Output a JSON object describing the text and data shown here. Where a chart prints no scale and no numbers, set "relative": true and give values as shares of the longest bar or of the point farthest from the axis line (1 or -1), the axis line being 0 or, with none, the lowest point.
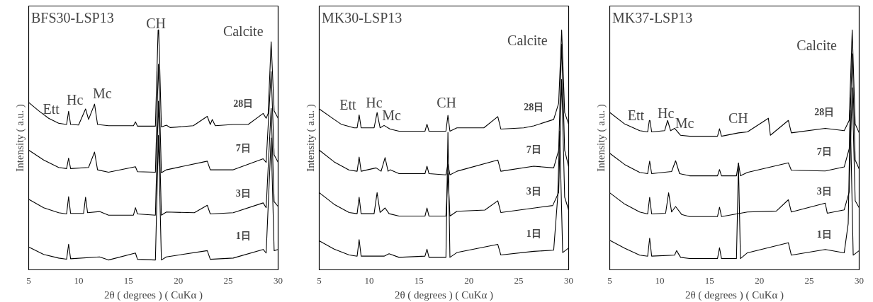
{
  "chart_data": [
    {
      "type": "line",
      "relative": true,
      "title": "BFS30-LSP13",
      "xlabel": "2θ ( degrees ) ( CuKα )",
      "ylabel": "Intensity ( a.u. )",
      "xlim": [
        5,
        30
      ],
      "xticks": [
        5,
        10,
        15,
        20,
        25,
        30
      ],
      "grid": false,
      "legend": false,
      "tick_labels": "x",
      "marker": "none",
      "line_style": "solid",
      "annotations": [
        "Ett",
        "Hc",
        "Mc",
        "CH",
        "Calcite"
      ],
      "series": [
        {
          "name": "28日",
          "color": "#000000",
          "x": [
            5,
            6,
            7,
            8,
            8.8,
            9.0,
            9.2,
            10,
            10.7,
            11.0,
            11.6,
            11.9,
            13,
            15.5,
            15.7,
            15.9,
            17.7,
            17.97,
            18.03,
            18.3,
            18.8,
            19.2,
            21.5,
            22.9,
            23.2,
            23.4,
            23.7,
            25.5,
            27,
            28.5,
            28.8,
            29.0,
            29.3,
            29.6,
            30
          ],
          "values": [
            0.698,
            0.663,
            0.632,
            0.611,
            0.606,
            0.661,
            0.606,
            0.604,
            0.671,
            0.627,
            0.691,
            0.606,
            0.601,
            0.601,
            0.617,
            0.599,
            0.599,
            1.0,
            1.0,
            0.596,
            0.603,
            0.593,
            0.601,
            0.64,
            0.606,
            0.627,
            0.601,
            0.606,
            0.606,
            0.652,
            0.632,
            0.652,
            0.951,
            0.663,
            0.632
          ]
        },
        {
          "name": "7日",
          "color": "#000000",
          "x": [
            5,
            6.5,
            8,
            8.8,
            9.0,
            9.2,
            11.0,
            11.6,
            11.9,
            13,
            15.7,
            15.9,
            17.7,
            18.0,
            18.3,
            18.8,
            22.9,
            23.2,
            25.5,
            28.5,
            28.8,
            29.3,
            29.6,
            30
          ],
          "values": [
            0.499,
            0.458,
            0.427,
            0.422,
            0.466,
            0.422,
            0.427,
            0.491,
            0.417,
            0.407,
            0.43,
            0.409,
            0.407,
            0.857,
            0.405,
            0.417,
            0.453,
            0.417,
            0.417,
            0.463,
            0.448,
            0.826,
            0.479,
            0.448
          ]
        },
        {
          "name": "3日",
          "color": "#000000",
          "x": [
            5,
            6.5,
            8,
            8.8,
            9.0,
            9.2,
            10.5,
            10.7,
            10.9,
            12.1,
            13,
            15.5,
            15.7,
            15.9,
            17.7,
            18.0,
            18.3,
            18.8,
            21.6,
            22.9,
            23.2,
            25.5,
            28.5,
            28.8,
            29.3,
            29.6,
            30
          ],
          "values": [
            0.294,
            0.259,
            0.238,
            0.233,
            0.305,
            0.235,
            0.235,
            0.303,
            0.238,
            0.243,
            0.228,
            0.228,
            0.259,
            0.233,
            0.228,
            0.703,
            0.228,
            0.241,
            0.238,
            0.269,
            0.233,
            0.238,
            0.279,
            0.259,
            0.673,
            0.284,
            0.264
          ]
        },
        {
          "name": "1日",
          "color": "#000000",
          "x": [
            5,
            6.5,
            8,
            8.8,
            9.0,
            9.2,
            12.1,
            13,
            15.7,
            15.9,
            17.7,
            18.0,
            18.3,
            18.8,
            22.9,
            23.2,
            25.5,
            28.5,
            28.8,
            29.3,
            29.6,
            30
          ],
          "values": [
            0.095,
            0.064,
            0.049,
            0.044,
            0.107,
            0.046,
            0.054,
            0.041,
            0.07,
            0.044,
            0.041,
            0.56,
            0.041,
            0.054,
            0.08,
            0.044,
            0.049,
            0.085,
            0.07,
            0.55,
            0.08,
            0.085
          ]
        }
      ]
    },
    {
      "type": "line",
      "relative": true,
      "title": "MK30-LSP13",
      "xlabel": "2θ ( degrees ) ( CuKα )",
      "ylabel": "Intensity ( a.u. )",
      "xlim": [
        5,
        30
      ],
      "xticks": [
        5,
        10,
        15,
        20,
        25,
        30
      ],
      "grid": false,
      "legend": false,
      "tick_labels": "x",
      "marker": "none",
      "line_style": "solid",
      "annotations": [
        "Ett",
        "Hc",
        "Mc",
        "CH",
        "Calcite"
      ],
      "series": [
        {
          "name": "28日",
          "color": "#000000",
          "x": [
            5,
            6.5,
            7.2,
            8.5,
            8.8,
            9.0,
            9.2,
            10.5,
            10.8,
            11.1,
            11.5,
            12.1,
            13,
            15.6,
            15.8,
            16,
            17.7,
            17.9,
            18.1,
            18.8,
            21.5,
            22.9,
            23.2,
            25.5,
            26.5,
            28.5,
            29.0,
            29.3,
            29.6,
            30
          ],
          "values": [
            0.671,
            0.627,
            0.607,
            0.592,
            0.592,
            0.646,
            0.592,
            0.592,
            0.656,
            0.592,
            0.602,
            0.587,
            0.578,
            0.578,
            0.607,
            0.578,
            0.578,
            0.644,
            0.578,
            0.592,
            0.592,
            0.639,
            0.587,
            0.592,
            0.6,
            0.627,
            0.695,
            1.0,
            0.656,
            0.607
          ]
        },
        {
          "name": "7日",
          "color": "#000000",
          "x": [
            5,
            6.5,
            8,
            8.8,
            9.0,
            9.2,
            10.7,
            11.2,
            11.6,
            11.9,
            12.1,
            13,
            15.6,
            15.8,
            16,
            17.7,
            17.9,
            18.1,
            18.8,
            22.9,
            23.2,
            26.5,
            28.5,
            29.0,
            29.3,
            29.6,
            30
          ],
          "values": [
            0.499,
            0.45,
            0.416,
            0.411,
            0.47,
            0.411,
            0.425,
            0.411,
            0.468,
            0.411,
            0.417,
            0.401,
            0.401,
            0.432,
            0.401,
            0.396,
            0.44,
            0.396,
            0.411,
            0.458,
            0.411,
            0.432,
            0.425,
            0.499,
            0.941,
            0.499,
            0.43
          ]
        },
        {
          "name": "3日",
          "color": "#000000",
          "x": [
            5,
            6.5,
            8,
            8.8,
            9.0,
            9.2,
            10.5,
            10.8,
            11.1,
            11.6,
            12,
            13,
            15.6,
            15.8,
            16,
            17.7,
            17.9,
            18.1,
            18.8,
            21.6,
            22.9,
            23.2,
            28.4,
            29.0,
            29.3,
            29.6,
            30
          ],
          "values": [
            0.322,
            0.273,
            0.239,
            0.234,
            0.303,
            0.234,
            0.234,
            0.322,
            0.239,
            0.258,
            0.234,
            0.224,
            0.224,
            0.258,
            0.224,
            0.224,
            0.401,
            0.224,
            0.244,
            0.249,
            0.288,
            0.239,
            0.268,
            0.322,
            0.794,
            0.303,
            0.249
          ]
        },
        {
          "name": "1日",
          "color": "#000000",
          "x": [
            5,
            6.5,
            8,
            8.8,
            9.0,
            9.2,
            11.5,
            12,
            13,
            15.6,
            15.8,
            16,
            17.7,
            17.9,
            18.1,
            18.8,
            22.9,
            23.2,
            26.5,
            28.5,
            28.9,
            29.1,
            29.4,
            30
          ],
          "values": [
            0.121,
            0.086,
            0.062,
            0.057,
            0.126,
            0.057,
            0.057,
            0.067,
            0.052,
            0.057,
            0.086,
            0.052,
            0.052,
            0.573,
            0.052,
            0.072,
            0.106,
            0.062,
            0.077,
            0.082,
            0.303,
            0.578,
            0.072,
            0.091
          ]
        }
      ]
    },
    {
      "type": "line",
      "relative": true,
      "title": "MK37-LSP13",
      "xlabel": "2θ ( degrees ) ( CuKα )",
      "ylabel": "Intensity ( a.u. )",
      "xlim": [
        5,
        30
      ],
      "xticks": [
        5,
        10,
        15,
        20,
        25,
        30
      ],
      "grid": false,
      "legend": false,
      "tick_labels": "x",
      "marker": "none",
      "line_style": "solid",
      "annotations": [
        "Ett",
        "Hc",
        "Mc",
        "CH",
        "Calcite"
      ],
      "series": [
        {
          "name": "28日",
          "color": "#000000",
          "x": [
            5,
            6.5,
            8,
            8.8,
            8.97,
            9.03,
            9.2,
            10.5,
            10.8,
            11.1,
            11.5,
            12.1,
            13,
            15.8,
            16,
            16.2,
            17.9,
            18.8,
            20.9,
            21.1,
            22.9,
            23.2,
            26.6,
            28.5,
            29.0,
            29.3,
            29.6,
            30
          ],
          "values": [
            0.656,
            0.608,
            0.58,
            0.575,
            0.623,
            0.623,
            0.575,
            0.58,
            0.623,
            0.58,
            0.59,
            0.561,
            0.557,
            0.557,
            0.588,
            0.557,
            0.571,
            0.575,
            0.632,
            0.561,
            0.623,
            0.571,
            0.59,
            0.58,
            0.623,
            1.0,
            0.608,
            0.571
          ]
        },
        {
          "name": "7日",
          "color": "#000000",
          "x": [
            5,
            6.5,
            8,
            8.8,
            9.0,
            9.2,
            11.2,
            11.6,
            12,
            13,
            15.8,
            16,
            16.2,
            17.7,
            17.9,
            18.1,
            18.8,
            22.9,
            23.2,
            26.6,
            28.5,
            29.0,
            29.3,
            29.6,
            30
          ],
          "values": [
            0.486,
            0.439,
            0.406,
            0.401,
            0.453,
            0.401,
            0.41,
            0.455,
            0.401,
            0.392,
            0.392,
            0.418,
            0.392,
            0.392,
            0.446,
            0.392,
            0.406,
            0.446,
            0.415,
            0.412,
            0.429,
            0.505,
            0.901,
            0.458,
            0.42
          ]
        },
        {
          "name": "3日",
          "color": "#000000",
          "x": [
            5,
            6.5,
            8,
            8.8,
            9.0,
            9.2,
            10.6,
            10.9,
            11.2,
            11.6,
            12.2,
            13,
            15.8,
            16,
            16.2,
            18.8,
            21.7,
            22.9,
            23.2,
            26.6,
            26.8,
            28.5,
            29.0,
            29.3,
            29.6,
            30
          ],
          "values": [
            0.321,
            0.274,
            0.241,
            0.233,
            0.302,
            0.233,
            0.236,
            0.321,
            0.241,
            0.264,
            0.231,
            0.222,
            0.222,
            0.261,
            0.222,
            0.241,
            0.245,
            0.292,
            0.241,
            0.278,
            0.236,
            0.25,
            0.325,
            0.759,
            0.288,
            0.259
          ]
        },
        {
          "name": "1日",
          "color": "#000000",
          "x": [
            5,
            6.5,
            8,
            8.8,
            9.0,
            9.2,
            11.5,
            11.7,
            12.1,
            13,
            15.8,
            16,
            16.2,
            17.7,
            17.9,
            18.1,
            18.8,
            22.9,
            23.2,
            26.6,
            28.5,
            28.9,
            29.1,
            29.4,
            30
          ],
          "values": [
            0.123,
            0.09,
            0.061,
            0.057,
            0.132,
            0.057,
            0.061,
            0.08,
            0.052,
            0.047,
            0.047,
            0.092,
            0.047,
            0.047,
            0.443,
            0.047,
            0.071,
            0.113,
            0.061,
            0.085,
            0.071,
            0.193,
            0.665,
            0.061,
            0.08
          ]
        }
      ]
    }
  ]
}
